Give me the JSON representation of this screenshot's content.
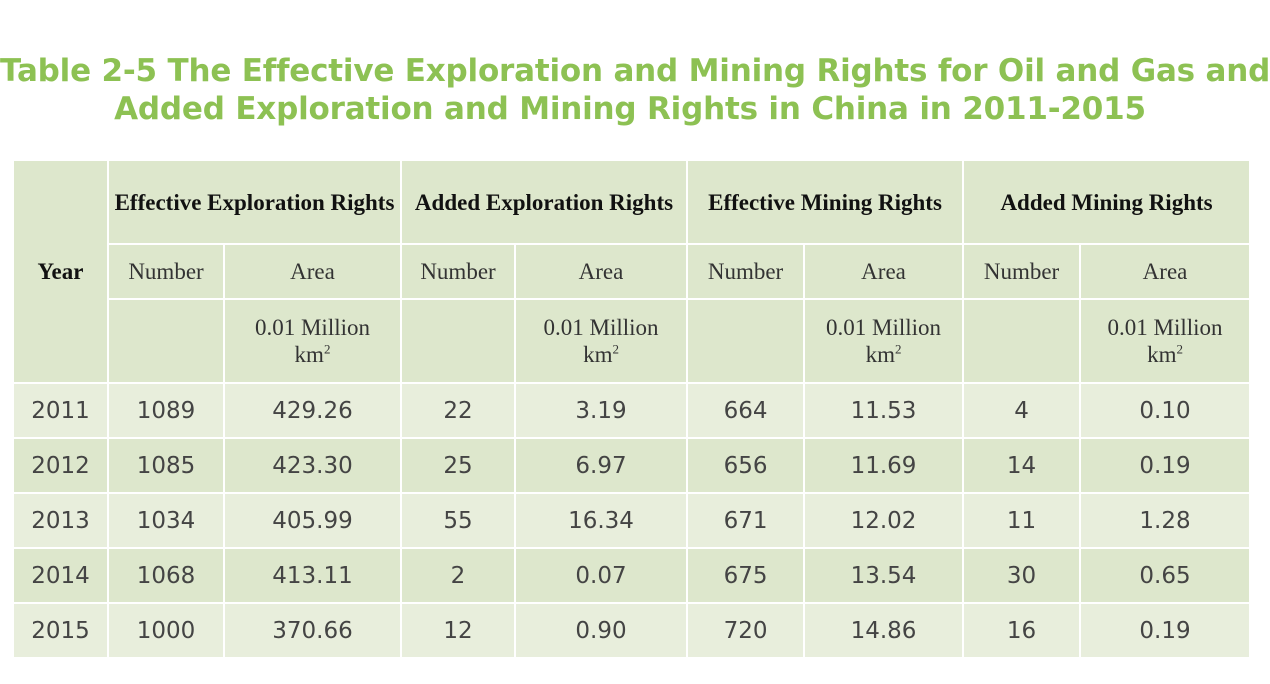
{
  "title": {
    "line1": "Table 2-5 The Effective Exploration and Mining Rights for Oil and Gas and",
    "line2": "Added Exploration and Mining Rights in China in 2011-2015"
  },
  "header": {
    "year": "Year",
    "groups": [
      "Effective Exploration Rights",
      "Added Exploration Rights",
      "Effective Mining Rights",
      "Added Mining Rights"
    ],
    "number_label": "Number",
    "area_label": "Area",
    "unit_line1": "0.01 Million",
    "unit_km": "km",
    "unit_sup": "2"
  },
  "rows": [
    {
      "year": "2011",
      "values": [
        "1089",
        "429.26",
        "22",
        "3.19",
        "664",
        "11.53",
        "4",
        "0.10"
      ]
    },
    {
      "year": "2012",
      "values": [
        "1085",
        "423.30",
        "25",
        "6.97",
        "656",
        "11.69",
        "14",
        "0.19"
      ]
    },
    {
      "year": "2013",
      "values": [
        "1034",
        "405.99",
        "55",
        "16.34",
        "671",
        "12.02",
        "11",
        "1.28"
      ]
    },
    {
      "year": "2014",
      "values": [
        "1068",
        "413.11",
        "2",
        "0.07",
        "675",
        "13.54",
        "30",
        "0.65"
      ]
    },
    {
      "year": "2015",
      "values": [
        "1000",
        "370.66",
        "12",
        "0.90",
        "720",
        "14.86",
        "16",
        "0.19"
      ]
    }
  ]
}
